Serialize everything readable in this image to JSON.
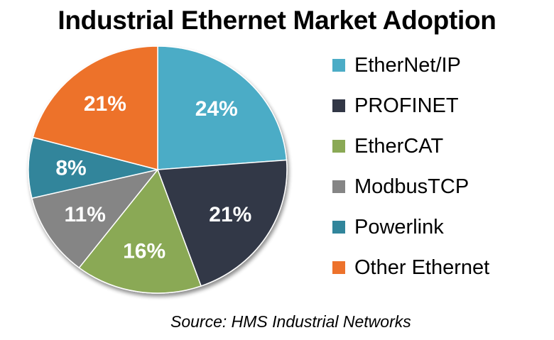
{
  "chart_data": {
    "type": "pie",
    "title": "Industrial Ethernet Market Adoption",
    "source": "Source: HMS Industrial Networks",
    "legend_position": "right",
    "slices": [
      {
        "name": "EtherNet/IP",
        "value": 24,
        "label": "24%",
        "color": "#4bacc6"
      },
      {
        "name": "PROFINET",
        "value": 21,
        "label": "21%",
        "color": "#323746"
      },
      {
        "name": "EtherCAT",
        "value": 16,
        "label": "16%",
        "color": "#8aa955"
      },
      {
        "name": "ModbusTCP",
        "value": 11,
        "label": "11%",
        "color": "#858585"
      },
      {
        "name": "Powerlink",
        "value": 8,
        "label": "8%",
        "color": "#31859b"
      },
      {
        "name": "Other Ethernet",
        "value": 21,
        "label": "21%",
        "color": "#ed722c"
      }
    ]
  }
}
